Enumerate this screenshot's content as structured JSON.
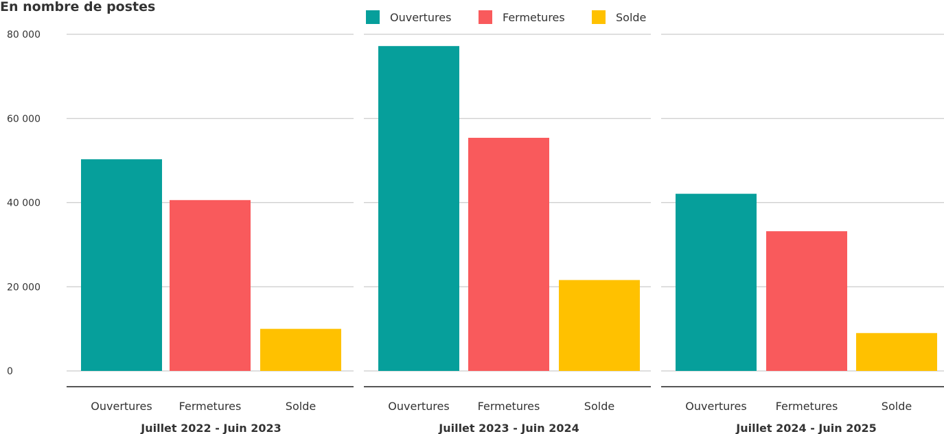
{
  "chart_data": {
    "type": "bar",
    "title": "En nombre de postes",
    "ylim": [
      0,
      80000
    ],
    "yticks": [
      0,
      20000,
      40000,
      60000,
      80000
    ],
    "ytick_labels": [
      "0",
      "20 000",
      "40 000",
      "60 000",
      "80 000"
    ],
    "grid": true,
    "legend_position": "top",
    "categories": [
      "Ouvertures",
      "Fermetures",
      "Solde"
    ],
    "colors": [
      "#069f9b",
      "#f95a5c",
      "#ffc100"
    ],
    "panels": [
      {
        "label": "Juillet 2022 - Juin 2023",
        "values": [
          50300,
          40600,
          10000
        ]
      },
      {
        "label": "Juillet 2023 - Juin 2024",
        "values": [
          77200,
          55400,
          21600
        ]
      },
      {
        "label": "Juillet 2024 - Juin 2025",
        "values": [
          42100,
          33200,
          9000
        ]
      }
    ]
  },
  "legend": [
    {
      "label": "Ouvertures",
      "color": "#069f9b"
    },
    {
      "label": "Fermetures",
      "color": "#f95a5c"
    },
    {
      "label": "Solde",
      "color": "#ffc100"
    }
  ]
}
